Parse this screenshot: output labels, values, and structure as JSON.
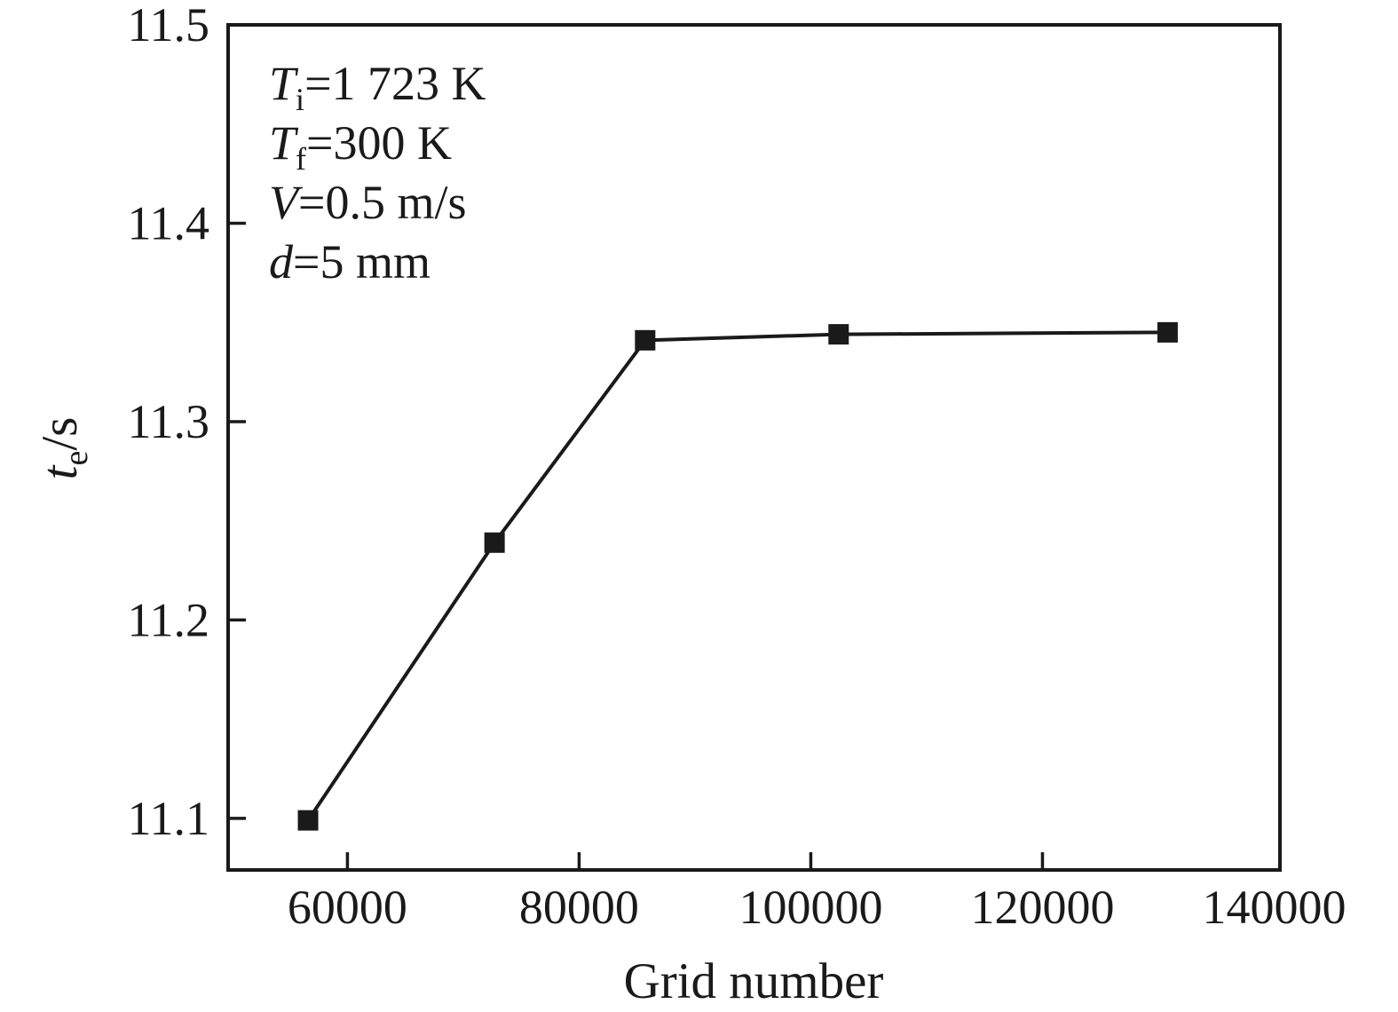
{
  "figure": {
    "background": "#ffffff",
    "ink_color": "#1a1a1a"
  },
  "chart_data": {
    "type": "line",
    "title": "",
    "xlabel": "Grid number",
    "ylabel": {
      "var": "t",
      "sub": "e",
      "rest": "/s",
      "text": "te/s"
    },
    "x": [
      56600,
      72700,
      85700,
      102400,
      130800
    ],
    "y": [
      11.099,
      11.239,
      11.341,
      11.344,
      11.345
    ],
    "marker": "filled-square",
    "marker_size": 23,
    "line_color": "#1a1a1a",
    "line_width": 4,
    "xlim": [
      49700,
      140500
    ],
    "ylim": [
      11.074,
      11.5
    ],
    "x_ticks": [
      60000,
      80000,
      100000,
      120000,
      140000
    ],
    "x_tick_labels": [
      "60000",
      "80000",
      "100000",
      "120000",
      "140000"
    ],
    "y_ticks": [
      11.1,
      11.2,
      11.3,
      11.4,
      11.5
    ],
    "y_tick_labels": [
      "11.1",
      "11.2",
      "11.3",
      "11.4",
      "11.5"
    ],
    "grid": false,
    "legend": false,
    "annotations": [
      {
        "var": "T",
        "sub": "i",
        "rest": "=1 723 K",
        "text": "Ti=1 723 K"
      },
      {
        "var": "T",
        "sub": "f",
        "rest": "=300 K",
        "text": "Tf=300 K"
      },
      {
        "var": "V",
        "sub": "",
        "rest": "=0.5 m/s",
        "text": "V=0.5 m/s"
      },
      {
        "var": "d",
        "sub": "",
        "rest": "=5 mm",
        "text": "d=5 mm"
      }
    ]
  }
}
